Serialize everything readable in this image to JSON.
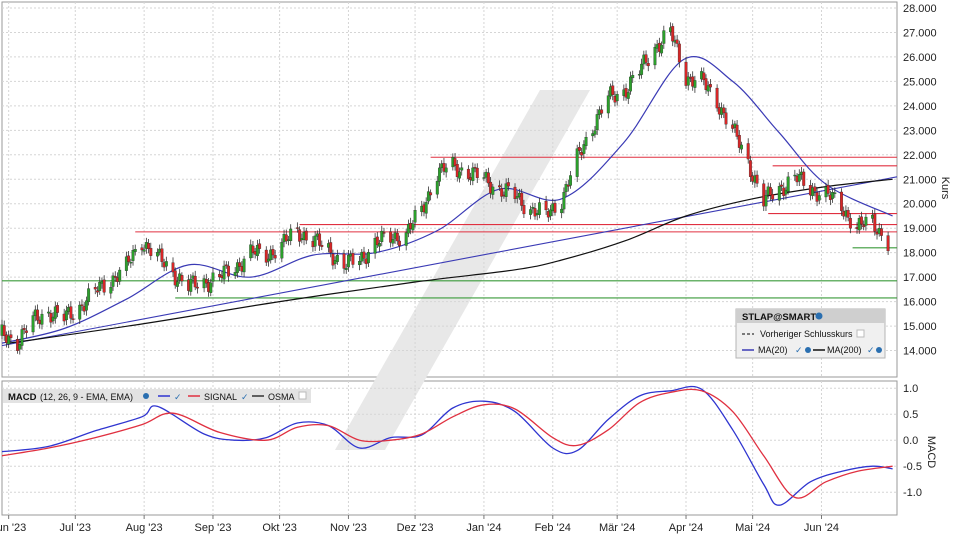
{
  "colors": {
    "up": "#2ca02c",
    "down": "#d62728",
    "ma20": "#3a3ab5",
    "ma200": "#111111",
    "macd": "#2f35d0",
    "signal": "#e03040",
    "resistance": "#e03040",
    "support": "#3a9a3a",
    "grid": "#d5d5d5"
  },
  "price_panel": {
    "axis_label": "Kurs",
    "legend": {
      "symbol": "STLAP@SMART",
      "prev_close": "Vorheriger Schlusskurs",
      "ma20": "MA(20)",
      "ma200": "MA(200)"
    }
  },
  "macd_panel": {
    "axis_label": "MACD",
    "legend": {
      "title": "MACD",
      "params": "(12, 26, 9 - EMA, EMA)",
      "signal": "SIGNAL",
      "osma": "OSMA"
    }
  },
  "chart_data": [
    {
      "type": "candlestick",
      "symbol": "STLAP@SMART",
      "ylabel": "Kurs",
      "ylim": [
        13.0,
        28.0
      ],
      "y_ticks": [
        "14.000",
        "15.000",
        "16.000",
        "17.000",
        "18.000",
        "19.000",
        "20.000",
        "21.000",
        "22.000",
        "23.000",
        "24.000",
        "25.000",
        "26.000",
        "27.000",
        "28.000"
      ],
      "x_ticks": [
        "Jun '23",
        "Jul '23",
        "Aug '23",
        "Sep '23",
        "Okt '23",
        "Nov '23",
        "Dez '23",
        "Jan '24",
        "Feb '24",
        "Mär '24",
        "Apr '24",
        "Mai '24",
        "Jun '24"
      ],
      "x_range": [
        "2023-05-29",
        "2024-07-05"
      ],
      "close_series": [
        [
          "2023-05-29",
          14.6
        ],
        [
          "2023-06-05",
          14.4
        ],
        [
          "2023-06-12",
          15.2
        ],
        [
          "2023-06-19",
          15.6
        ],
        [
          "2023-06-26",
          15.3
        ],
        [
          "2023-07-03",
          15.8
        ],
        [
          "2023-07-10",
          16.4
        ],
        [
          "2023-07-17",
          16.9
        ],
        [
          "2023-07-24",
          17.4
        ],
        [
          "2023-07-31",
          18.5
        ],
        [
          "2023-08-07",
          17.8
        ],
        [
          "2023-08-14",
          17.2
        ],
        [
          "2023-08-21",
          16.6
        ],
        [
          "2023-08-28",
          16.8
        ],
        [
          "2023-09-04",
          17.0
        ],
        [
          "2023-09-11",
          17.4
        ],
        [
          "2023-09-18",
          18.0
        ],
        [
          "2023-09-25",
          17.9
        ],
        [
          "2023-10-02",
          18.3
        ],
        [
          "2023-10-09",
          18.9
        ],
        [
          "2023-10-16",
          18.5
        ],
        [
          "2023-10-23",
          18.1
        ],
        [
          "2023-10-30",
          17.5
        ],
        [
          "2023-11-06",
          17.7
        ],
        [
          "2023-11-13",
          18.4
        ],
        [
          "2023-11-20",
          18.6
        ],
        [
          "2023-11-27",
          18.8
        ],
        [
          "2023-12-04",
          19.7
        ],
        [
          "2023-12-11",
          21.3
        ],
        [
          "2023-12-18",
          21.5
        ],
        [
          "2023-12-25",
          21.3
        ],
        [
          "2024-01-01",
          21.0
        ],
        [
          "2024-01-08",
          20.6
        ],
        [
          "2024-01-15",
          20.3
        ],
        [
          "2024-01-22",
          19.8
        ],
        [
          "2024-01-29",
          19.5
        ],
        [
          "2024-02-05",
          20.2
        ],
        [
          "2024-02-12",
          21.8
        ],
        [
          "2024-02-19",
          23.2
        ],
        [
          "2024-02-26",
          24.3
        ],
        [
          "2024-03-04",
          24.6
        ],
        [
          "2024-03-11",
          25.4
        ],
        [
          "2024-03-18",
          26.4
        ],
        [
          "2024-03-25",
          27.0
        ],
        [
          "2024-04-01",
          25.2
        ],
        [
          "2024-04-08",
          25.0
        ],
        [
          "2024-04-15",
          24.2
        ],
        [
          "2024-04-22",
          23.0
        ],
        [
          "2024-04-29",
          21.7
        ],
        [
          "2024-05-06",
          20.1
        ],
        [
          "2024-05-13",
          20.6
        ],
        [
          "2024-05-20",
          21.1
        ],
        [
          "2024-05-27",
          20.6
        ],
        [
          "2024-06-03",
          20.4
        ],
        [
          "2024-06-10",
          19.9
        ],
        [
          "2024-06-17",
          19.0
        ],
        [
          "2024-06-24",
          19.3
        ],
        [
          "2024-07-01",
          18.4
        ]
      ],
      "ma20": [
        [
          "2023-05-29",
          14.3
        ],
        [
          "2023-06-26",
          14.9
        ],
        [
          "2023-07-24",
          16.1
        ],
        [
          "2023-08-21",
          17.5
        ],
        [
          "2023-09-18",
          17.0
        ],
        [
          "2023-10-16",
          17.9
        ],
        [
          "2023-11-13",
          18.0
        ],
        [
          "2023-12-11",
          18.9
        ],
        [
          "2024-01-08",
          20.6
        ],
        [
          "2024-02-05",
          20.2
        ],
        [
          "2024-03-04",
          22.5
        ],
        [
          "2024-03-31",
          25.9
        ],
        [
          "2024-04-22",
          25.0
        ],
        [
          "2024-05-13",
          22.9
        ],
        [
          "2024-06-03",
          20.8
        ],
        [
          "2024-07-03",
          19.5
        ]
      ],
      "ma200": [
        [
          "2023-06-01",
          14.3
        ],
        [
          "2023-08-01",
          15.1
        ],
        [
          "2023-10-01",
          16.0
        ],
        [
          "2023-12-01",
          16.8
        ],
        [
          "2024-01-15",
          17.3
        ],
        [
          "2024-02-05",
          17.7
        ],
        [
          "2024-03-05",
          18.5
        ],
        [
          "2024-04-01",
          19.5
        ],
        [
          "2024-05-01",
          20.2
        ],
        [
          "2024-06-03",
          20.7
        ],
        [
          "2024-07-03",
          21.0
        ]
      ],
      "trendline": [
        [
          "2023-05-29",
          14.2
        ],
        [
          "2024-07-05",
          21.1
        ]
      ],
      "resistance_levels": [
        {
          "value": 21.9,
          "from": "2023-12-08",
          "to": "2024-07-05"
        },
        {
          "value": 21.55,
          "from": "2024-05-10",
          "to": "2024-07-05"
        },
        {
          "value": 19.6,
          "from": "2024-05-08",
          "to": "2024-07-05"
        },
        {
          "value": 19.15,
          "from": "2023-10-10",
          "to": "2024-07-05"
        },
        {
          "value": 18.85,
          "from": "2023-07-28",
          "to": "2024-07-05"
        }
      ],
      "support_levels": [
        {
          "value": 16.85,
          "from": "2023-05-29",
          "to": "2024-07-05"
        },
        {
          "value": 16.15,
          "from": "2023-08-15",
          "to": "2024-07-05"
        },
        {
          "value": 18.2,
          "from": "2024-06-15",
          "to": "2024-07-05"
        }
      ]
    },
    {
      "type": "line",
      "title": "MACD",
      "ylabel": "MACD",
      "ylim": [
        -1.4,
        1.1
      ],
      "y_ticks": [
        "1.0",
        "0.5",
        "0.0",
        "-0.5",
        "-1.0"
      ],
      "series": [
        {
          "name": "MACD",
          "values": [
            [
              "2023-05-29",
              -0.22
            ],
            [
              "2023-06-19",
              -0.12
            ],
            [
              "2023-07-10",
              0.18
            ],
            [
              "2023-07-31",
              0.45
            ],
            [
              "2023-08-07",
              0.65
            ],
            [
              "2023-08-28",
              0.12
            ],
            [
              "2023-09-11",
              0.0
            ],
            [
              "2023-09-25",
              0.05
            ],
            [
              "2023-10-09",
              0.33
            ],
            [
              "2023-10-23",
              0.28
            ],
            [
              "2023-11-06",
              -0.15
            ],
            [
              "2023-11-20",
              0.05
            ],
            [
              "2023-12-04",
              0.1
            ],
            [
              "2023-12-18",
              0.62
            ],
            [
              "2024-01-01",
              0.75
            ],
            [
              "2024-01-15",
              0.55
            ],
            [
              "2024-02-01",
              -0.15
            ],
            [
              "2024-02-12",
              -0.2
            ],
            [
              "2024-02-26",
              0.4
            ],
            [
              "2024-03-11",
              0.85
            ],
            [
              "2024-03-25",
              0.95
            ],
            [
              "2024-04-08",
              0.98
            ],
            [
              "2024-04-22",
              0.2
            ],
            [
              "2024-05-06",
              -0.85
            ],
            [
              "2024-05-13",
              -1.25
            ],
            [
              "2024-05-27",
              -0.8
            ],
            [
              "2024-06-10",
              -0.6
            ],
            [
              "2024-06-24",
              -0.5
            ],
            [
              "2024-07-03",
              -0.55
            ]
          ]
        },
        {
          "name": "SIGNAL",
          "values": [
            [
              "2023-05-29",
              -0.3
            ],
            [
              "2023-06-19",
              -0.15
            ],
            [
              "2023-07-10",
              0.05
            ],
            [
              "2023-07-31",
              0.3
            ],
            [
              "2023-08-14",
              0.52
            ],
            [
              "2023-09-04",
              0.15
            ],
            [
              "2023-09-25",
              0.0
            ],
            [
              "2023-10-09",
              0.25
            ],
            [
              "2023-10-23",
              0.28
            ],
            [
              "2023-11-06",
              0.0
            ],
            [
              "2023-11-20",
              0.0
            ],
            [
              "2023-12-04",
              0.12
            ],
            [
              "2023-12-18",
              0.45
            ],
            [
              "2024-01-01",
              0.68
            ],
            [
              "2024-01-15",
              0.6
            ],
            [
              "2024-02-01",
              0.05
            ],
            [
              "2024-02-12",
              -0.1
            ],
            [
              "2024-02-26",
              0.2
            ],
            [
              "2024-03-11",
              0.72
            ],
            [
              "2024-03-25",
              0.92
            ],
            [
              "2024-04-08",
              0.95
            ],
            [
              "2024-04-22",
              0.55
            ],
            [
              "2024-05-06",
              -0.3
            ],
            [
              "2024-05-20",
              -1.1
            ],
            [
              "2024-06-03",
              -0.8
            ],
            [
              "2024-06-17",
              -0.6
            ],
            [
              "2024-07-03",
              -0.5
            ]
          ]
        }
      ]
    }
  ]
}
